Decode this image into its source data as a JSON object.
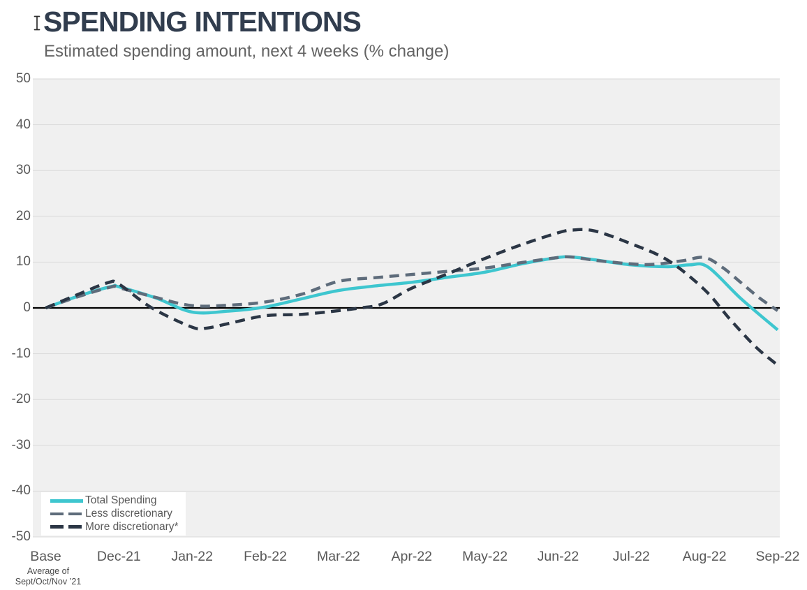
{
  "header": {
    "title": "SPENDING INTENTIONS",
    "subtitle": "Estimated spending amount, next 4 weeks (% change)"
  },
  "chart_data": {
    "type": "line",
    "title": "SPENDING INTENTIONS",
    "subtitle": "Estimated spending amount, next 4 weeks (% change)",
    "categories": [
      "Base",
      "Dec-21",
      "Jan-22",
      "Feb-22",
      "Mar-22",
      "Apr-22",
      "May-22",
      "Jun-22",
      "Jul-22",
      "Aug-22",
      "Sep-22"
    ],
    "base_note": {
      "line1": "Average of",
      "line2": "Sept/Oct/Nov ’21"
    },
    "ylim": [
      -50,
      50
    ],
    "y_ticks": [
      50,
      40,
      30,
      20,
      10,
      0,
      -10,
      -20,
      -30,
      -40,
      -50
    ],
    "grid": true,
    "zero_line": true,
    "legend_position": "inside-bottom-left",
    "colors": {
      "plot_background": "#F0F0F0",
      "gridline": "#D9D9D9",
      "zero_line": "#000000",
      "axis_text": "#595959"
    },
    "series": [
      {
        "name": "Total Spending",
        "color": "#3EC6CF",
        "dash": false,
        "values_by_month": [
          0,
          4.6,
          -0.9,
          0.2,
          3.8,
          5.6,
          7.8,
          11.0,
          9.3,
          9.0,
          -4.8
        ],
        "curve_x": [
          0,
          0.45,
          0.9,
          1.0,
          1.5,
          2.0,
          2.5,
          3.0,
          3.5,
          4.0,
          4.5,
          5.0,
          5.5,
          6.0,
          6.5,
          7.0,
          7.2,
          7.5,
          8.0,
          8.5,
          8.8,
          9.05,
          9.5,
          10.0
        ],
        "curve_y": [
          0,
          2.6,
          4.7,
          4.6,
          2.2,
          -0.9,
          -0.7,
          0.2,
          2.0,
          3.8,
          4.8,
          5.6,
          6.7,
          7.8,
          9.6,
          11.0,
          11.1,
          10.5,
          9.4,
          9.0,
          9.4,
          8.9,
          2.0,
          -4.8
        ]
      },
      {
        "name": "Less discretionary",
        "color": "#5E6C7B",
        "dash": true,
        "values_by_month": [
          0,
          4.4,
          0.5,
          1.3,
          5.8,
          7.3,
          8.7,
          11.0,
          9.6,
          11.0,
          -0.6
        ],
        "curve_x": [
          0,
          0.45,
          0.9,
          1.0,
          1.5,
          2.0,
          2.5,
          3.0,
          3.5,
          4.0,
          4.5,
          5.0,
          5.5,
          6.0,
          6.5,
          7.0,
          7.2,
          7.5,
          8.0,
          8.3,
          8.7,
          9.0,
          9.25,
          9.5,
          9.75,
          10.0
        ],
        "curve_y": [
          0,
          2.5,
          4.6,
          4.4,
          2.3,
          0.5,
          0.6,
          1.3,
          3.0,
          5.8,
          6.6,
          7.3,
          8.0,
          8.7,
          9.9,
          11.0,
          11.1,
          10.4,
          9.6,
          9.5,
          10.3,
          11.0,
          8.8,
          5.5,
          2.2,
          -0.6
        ]
      },
      {
        "name": "More discretionary*",
        "color": "#2B3645",
        "dash": true,
        "values_by_month": [
          0,
          5.2,
          -4.2,
          -1.7,
          -0.6,
          4.3,
          10.8,
          16.4,
          14.0,
          4.0,
          -12.5
        ],
        "curve_x": [
          0,
          0.45,
          0.85,
          1.0,
          1.45,
          2.0,
          2.2,
          2.5,
          3.0,
          3.5,
          4.0,
          4.3,
          4.6,
          5.0,
          5.5,
          6.0,
          6.5,
          7.0,
          7.2,
          7.5,
          8.0,
          8.5,
          9.0,
          9.35,
          9.7,
          10.0
        ],
        "curve_y": [
          0,
          3.0,
          5.5,
          5.2,
          0.0,
          -4.2,
          -4.4,
          -3.4,
          -1.7,
          -1.4,
          -0.6,
          0.0,
          0.9,
          4.3,
          7.5,
          10.8,
          13.8,
          16.4,
          17.0,
          16.8,
          14.0,
          10.4,
          4.0,
          -2.5,
          -8.5,
          -12.5
        ]
      }
    ]
  }
}
